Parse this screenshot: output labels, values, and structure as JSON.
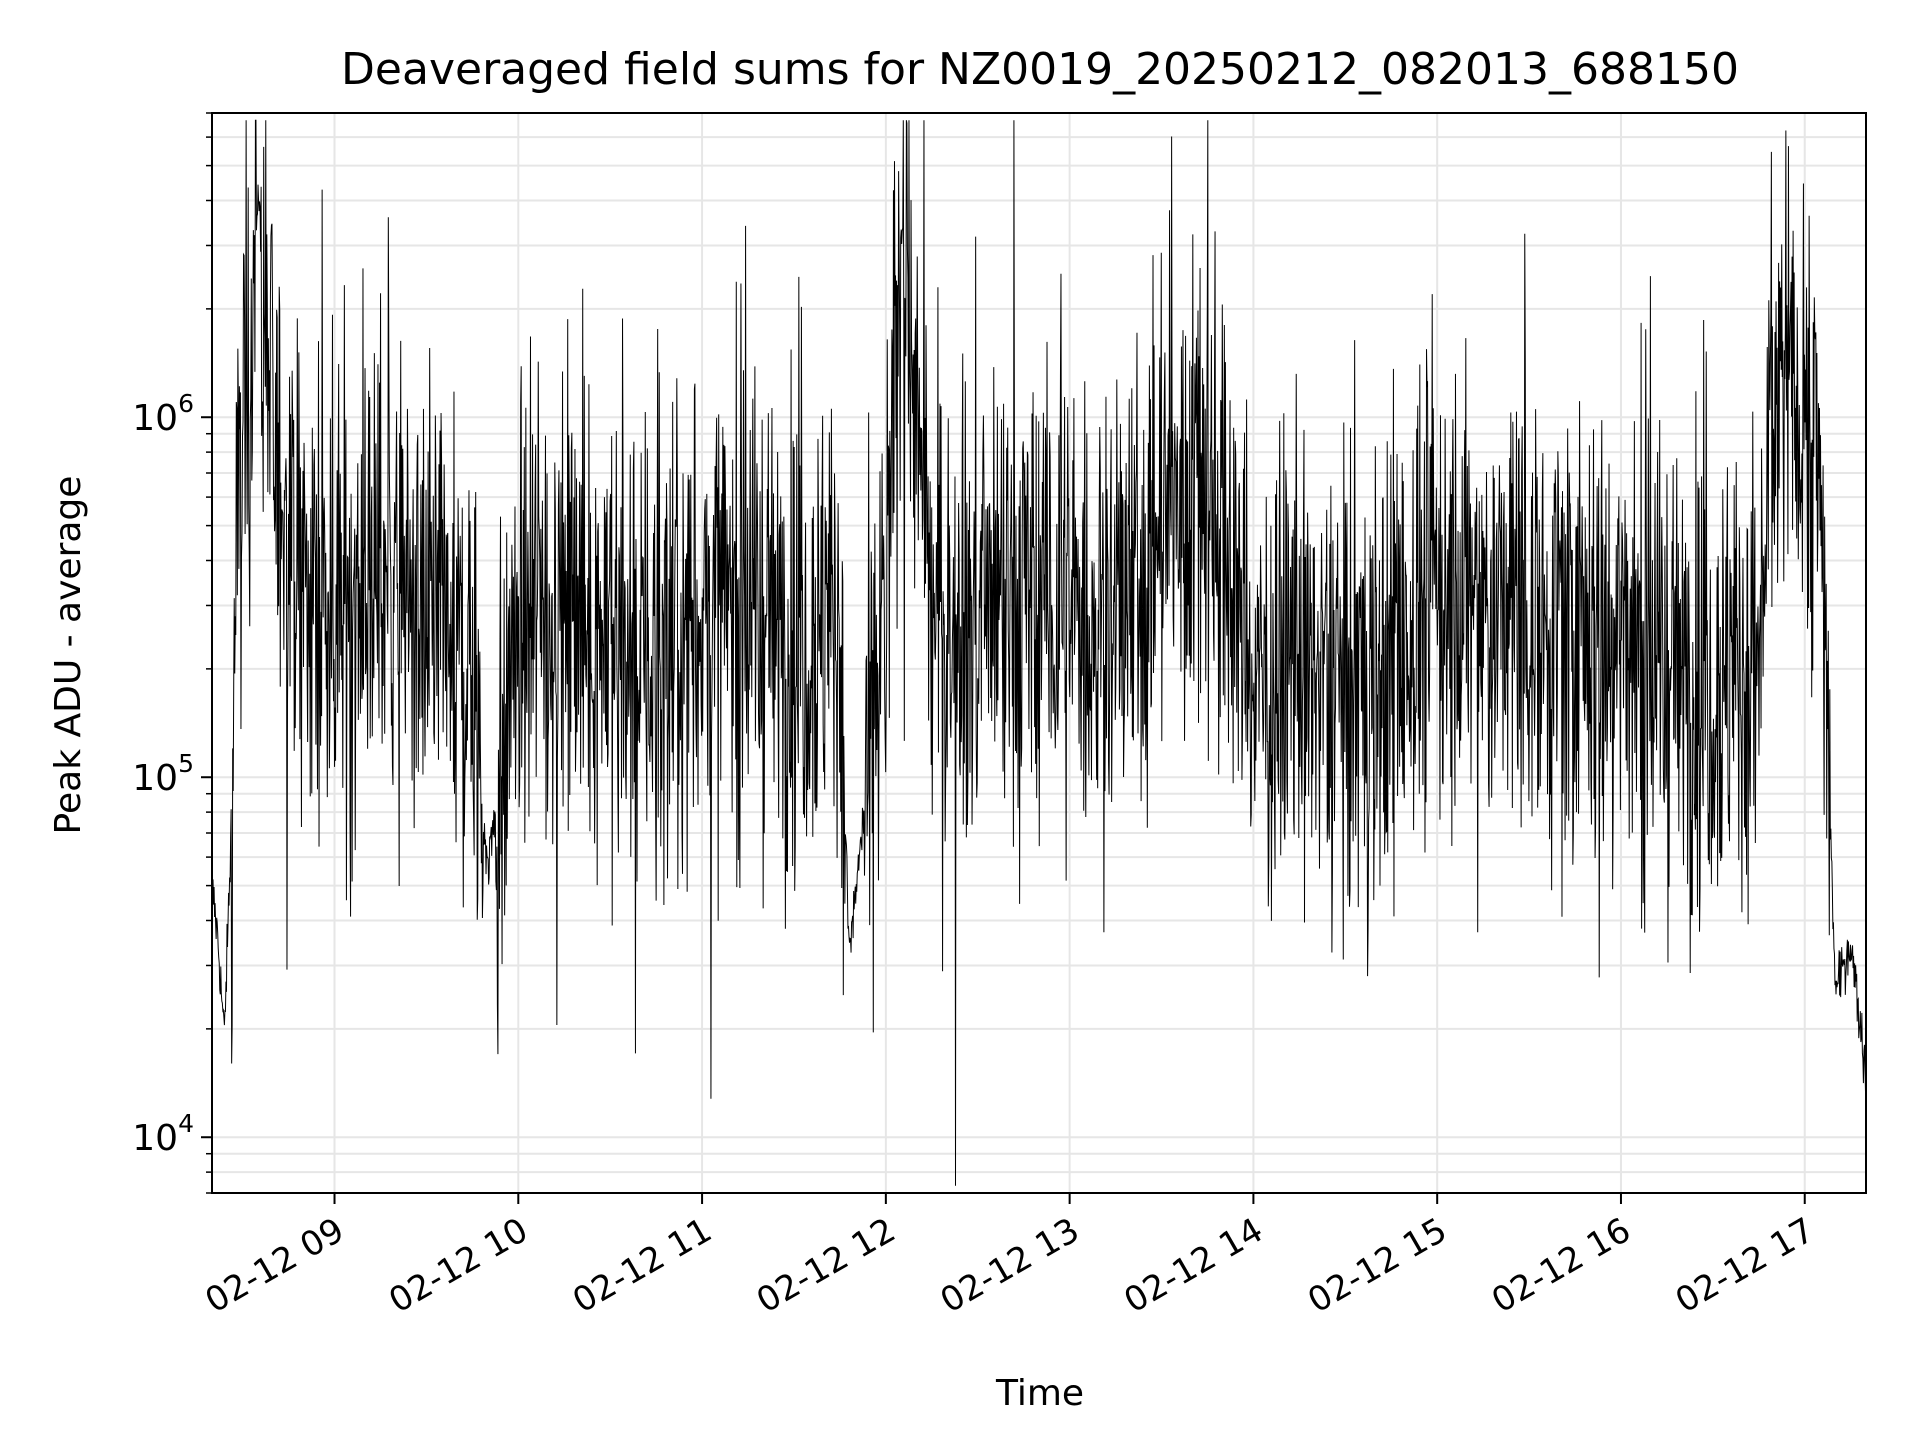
{
  "chart_data": {
    "type": "line",
    "title": "Deaveraged field sums for NZ0019_20250212_082013_688150",
    "xlabel": "Time",
    "ylabel": "Peak ADU - average",
    "yscale": "log",
    "xlim": [
      "2025-02-12 08:20",
      "2025-02-12 17:20"
    ],
    "ylim": [
      7000,
      7000000
    ],
    "grid": true,
    "x_ticks": [
      "02-12 09",
      "02-12 10",
      "02-12 11",
      "02-12 12",
      "02-12 13",
      "02-12 14",
      "02-12 15",
      "02-12 16",
      "02-12 17"
    ],
    "y_ticks": [
      {
        "base": "10",
        "exp": "4",
        "value": 10000
      },
      {
        "base": "10",
        "exp": "5",
        "value": 100000
      },
      {
        "base": "10",
        "exp": "6",
        "value": 1000000
      }
    ],
    "series": [
      {
        "color": "#000000",
        "x": [
          "08:20",
          "08:22",
          "08:24",
          "08:26",
          "08:28",
          "08:30",
          "08:31",
          "08:33",
          "08:35",
          "08:37",
          "08:40",
          "08:43",
          "08:46",
          "08:50",
          "08:55",
          "09:00",
          "09:15",
          "09:30",
          "09:45",
          "09:50",
          "10:00",
          "10:15",
          "10:30",
          "10:45",
          "11:00",
          "11:15",
          "11:30",
          "11:45",
          "11:48",
          "12:00",
          "12:05",
          "12:15",
          "12:30",
          "12:45",
          "13:00",
          "13:15",
          "13:30",
          "13:45",
          "14:00",
          "14:15",
          "14:30",
          "14:45",
          "15:00",
          "15:15",
          "15:30",
          "15:45",
          "16:00",
          "16:15",
          "16:30",
          "16:45",
          "16:50",
          "16:55",
          "17:00",
          "17:05",
          "17:08",
          "17:10",
          "17:15",
          "17:20"
        ],
        "y": [
          50000,
          35000,
          19000,
          60000,
          400000,
          900000,
          1200000,
          1500000,
          4500000,
          2000000,
          800000,
          600000,
          400000,
          300000,
          350000,
          300000,
          400000,
          250000,
          200000,
          55000,
          250000,
          300000,
          250000,
          200000,
          280000,
          300000,
          250000,
          280000,
          32000,
          300000,
          3500000,
          280000,
          250000,
          300000,
          280000,
          260000,
          500000,
          700000,
          180000,
          200000,
          170000,
          200000,
          350000,
          280000,
          300000,
          250000,
          250000,
          200000,
          190000,
          200000,
          1200000,
          1500000,
          1000000,
          700000,
          100000,
          25000,
          35000,
          15000
        ]
      }
    ]
  }
}
